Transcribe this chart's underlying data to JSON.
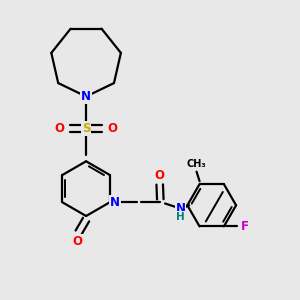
{
  "background_color": "#e8e8e8",
  "bond_color": "#000000",
  "atom_colors": {
    "N": "#0000ff",
    "O": "#ff0000",
    "S": "#ccaa00",
    "F": "#cc00cc",
    "H": "#008080",
    "C": "#000000"
  },
  "figsize": [
    3.0,
    3.0
  ],
  "dpi": 100,
  "lw": 1.6
}
